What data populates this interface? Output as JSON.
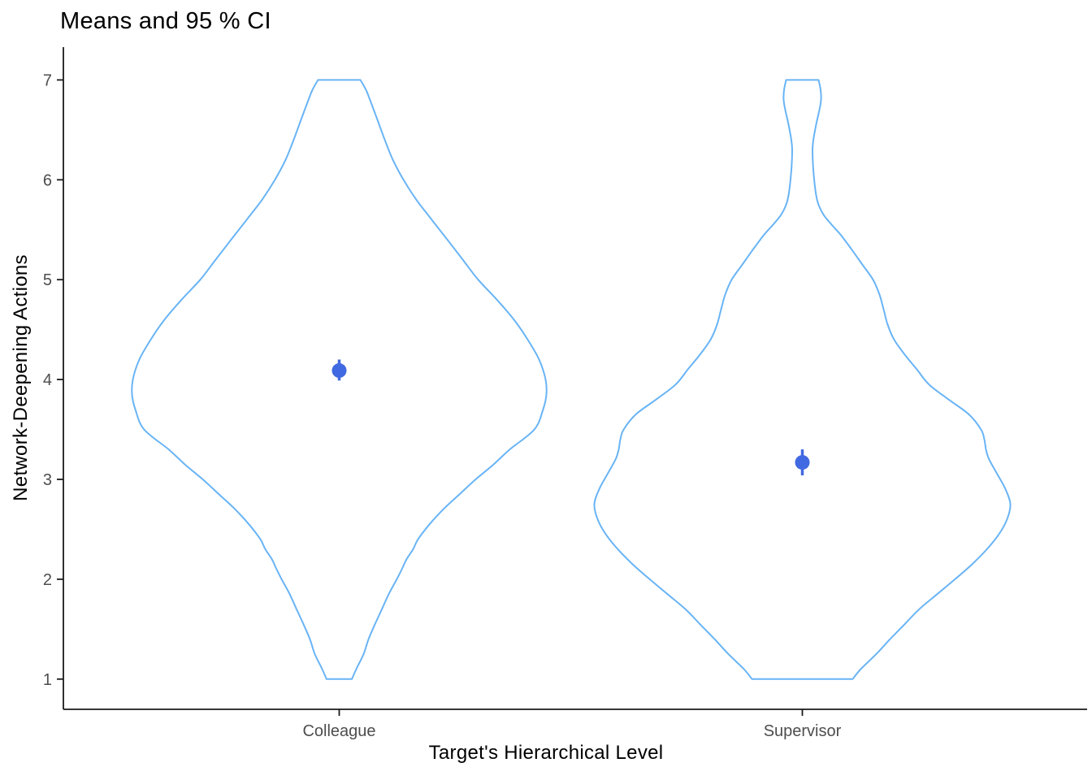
{
  "title": "Means and 95 % CI",
  "chart_data": {
    "type": "violin",
    "title": "Means and 95 % CI",
    "xlabel": "Target's Hierarchical Level",
    "ylabel": "Network-Deepening Actions",
    "ylim": [
      1,
      7
    ],
    "yticks": [
      7,
      6,
      5,
      4,
      3,
      2,
      1
    ],
    "categories": [
      "Colleague",
      "Supervisor"
    ],
    "legend": "none",
    "grid": "off",
    "groups": [
      {
        "label": "Colleague",
        "mean": 4.09,
        "ci_low": 3.99,
        "ci_high": 4.2,
        "density_profile": [
          [
            7.0,
            0.102
          ],
          [
            6.9,
            0.129
          ],
          [
            6.8,
            0.148
          ],
          [
            6.6,
            0.184
          ],
          [
            6.4,
            0.219
          ],
          [
            6.2,
            0.258
          ],
          [
            6.0,
            0.309
          ],
          [
            5.8,
            0.371
          ],
          [
            5.6,
            0.445
          ],
          [
            5.4,
            0.52
          ],
          [
            5.2,
            0.594
          ],
          [
            5.0,
            0.668
          ],
          [
            4.8,
            0.758
          ],
          [
            4.6,
            0.84
          ],
          [
            4.4,
            0.906
          ],
          [
            4.2,
            0.961
          ],
          [
            4.0,
            0.992
          ],
          [
            3.85,
            0.996
          ],
          [
            3.7,
            0.98
          ],
          [
            3.5,
            0.938
          ],
          [
            3.3,
            0.82
          ],
          [
            3.15,
            0.742
          ],
          [
            3.0,
            0.656
          ],
          [
            2.85,
            0.578
          ],
          [
            2.7,
            0.5
          ],
          [
            2.55,
            0.434
          ],
          [
            2.4,
            0.379
          ],
          [
            2.3,
            0.355
          ],
          [
            2.2,
            0.324
          ],
          [
            2.1,
            0.301
          ],
          [
            2.0,
            0.277
          ],
          [
            1.85,
            0.238
          ],
          [
            1.7,
            0.205
          ],
          [
            1.55,
            0.172
          ],
          [
            1.4,
            0.141
          ],
          [
            1.25,
            0.117
          ],
          [
            1.1,
            0.082
          ],
          [
            1.0,
            0.061
          ]
        ]
      },
      {
        "label": "Supervisor",
        "mean": 3.17,
        "ci_low": 3.04,
        "ci_high": 3.3,
        "density_profile": [
          [
            7.0,
            0.078
          ],
          [
            6.9,
            0.088
          ],
          [
            6.8,
            0.09
          ],
          [
            6.7,
            0.082
          ],
          [
            6.55,
            0.066
          ],
          [
            6.4,
            0.053
          ],
          [
            6.3,
            0.049
          ],
          [
            6.15,
            0.051
          ],
          [
            6.0,
            0.057
          ],
          [
            5.85,
            0.066
          ],
          [
            5.75,
            0.078
          ],
          [
            5.65,
            0.102
          ],
          [
            5.55,
            0.141
          ],
          [
            5.45,
            0.184
          ],
          [
            5.3,
            0.238
          ],
          [
            5.15,
            0.289
          ],
          [
            5.0,
            0.34
          ],
          [
            4.85,
            0.371
          ],
          [
            4.7,
            0.391
          ],
          [
            4.55,
            0.41
          ],
          [
            4.4,
            0.441
          ],
          [
            4.25,
            0.492
          ],
          [
            4.1,
            0.551
          ],
          [
            3.95,
            0.609
          ],
          [
            3.8,
            0.703
          ],
          [
            3.65,
            0.801
          ],
          [
            3.5,
            0.859
          ],
          [
            3.4,
            0.875
          ],
          [
            3.3,
            0.883
          ],
          [
            3.2,
            0.898
          ],
          [
            3.05,
            0.938
          ],
          [
            2.9,
            0.977
          ],
          [
            2.75,
            1.0
          ],
          [
            2.6,
            0.984
          ],
          [
            2.45,
            0.945
          ],
          [
            2.3,
            0.887
          ],
          [
            2.15,
            0.816
          ],
          [
            2.0,
            0.734
          ],
          [
            1.85,
            0.648
          ],
          [
            1.7,
            0.562
          ],
          [
            1.55,
            0.492
          ],
          [
            1.4,
            0.422
          ],
          [
            1.25,
            0.355
          ],
          [
            1.1,
            0.281
          ],
          [
            1.0,
            0.242
          ]
        ]
      }
    ],
    "colors": {
      "violin_outline": "#69b4f5",
      "mean_point": "#4169e1",
      "axis_line": "#1a1a1a",
      "tick_label": "#4d4d4d",
      "title_text": "#000000"
    }
  }
}
